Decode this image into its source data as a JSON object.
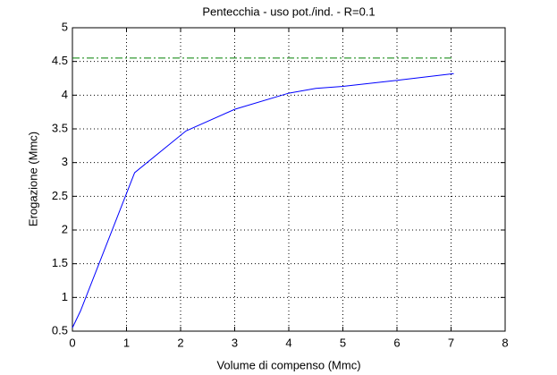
{
  "chart_data": {
    "type": "line",
    "title": "Pentecchia  -  uso pot./ind.  -   R=0.1",
    "xlabel": "Volume di compenso (Mmc)",
    "ylabel": "Erogazione (Mmc)",
    "series": [
      {
        "color": "#0000ff",
        "dash": "none",
        "x": [
          0,
          0.15,
          1.15,
          2.1,
          3,
          4,
          4.5,
          5,
          6,
          7.05
        ],
        "values": [
          0.55,
          0.8,
          2.85,
          3.47,
          3.79,
          4.03,
          4.1,
          4.13,
          4.22,
          4.32
        ]
      },
      {
        "color": "#008000",
        "dash": "8 3 2 3",
        "x": [
          0,
          7.05
        ],
        "values": [
          4.55,
          4.55
        ]
      }
    ],
    "xlim": [
      0,
      8
    ],
    "xticks": [
      0,
      1,
      2,
      3,
      4,
      5,
      6,
      7,
      8
    ],
    "ylim": [
      0.5,
      5
    ],
    "yticks": [
      0.5,
      1,
      1.5,
      2,
      2.5,
      3,
      3.5,
      4,
      4.5,
      5
    ],
    "grid": true
  }
}
